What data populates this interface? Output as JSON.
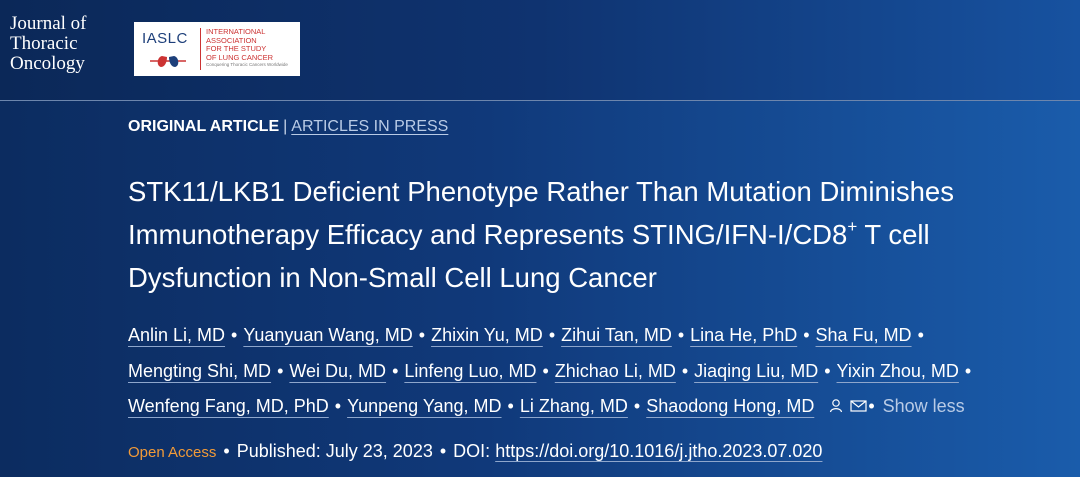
{
  "header": {
    "journal": [
      "Journal of",
      "Thoracic",
      "Oncology"
    ],
    "society_abbr": "IASLC",
    "society_name": [
      "INTERNATIONAL",
      "ASSOCIATION",
      "FOR THE STUDY",
      "OF LUNG CANCER"
    ],
    "society_tagline": "Conquering Thoracic Cancers Worldwide"
  },
  "article": {
    "type": "ORIGINAL ARTICLE",
    "section": "ARTICLES IN PRESS",
    "title": {
      "line1": "STK11/LKB1 Deficient Phenotype Rather Than Mutation Diminishes",
      "line2": "Immunotherapy Efficacy and Represents STING/IFN-I/CD8",
      "superscript": "+",
      "line2_end": " T cell",
      "line3": "Dysfunction in Non-Small Cell Lung Cancer"
    },
    "authors": [
      [
        "Anlin Li, MD",
        "Yuanyuan Wang, MD",
        "Zhixin Yu, MD",
        "Zihui Tan, MD",
        "Lina He, PhD",
        "Sha Fu, MD"
      ],
      [
        "Mengting Shi, MD",
        "Wei Du, MD",
        "Linfeng Luo, MD",
        "Zhichao Li, MD",
        "Jiaqing Liu, MD",
        "Yixin Zhou, MD"
      ],
      [
        "Wenfeng Fang, MD, PhD",
        "Yunpeng Yang, MD",
        "Li Zhang, MD",
        "Shaodong Hong, MD"
      ]
    ],
    "show_less": "Show less",
    "access": "Open Access",
    "published": "Published: July 23, 2023",
    "doi_label": "DOI:",
    "doi": "https://doi.org/10.1016/j.jtho.2023.07.020"
  }
}
